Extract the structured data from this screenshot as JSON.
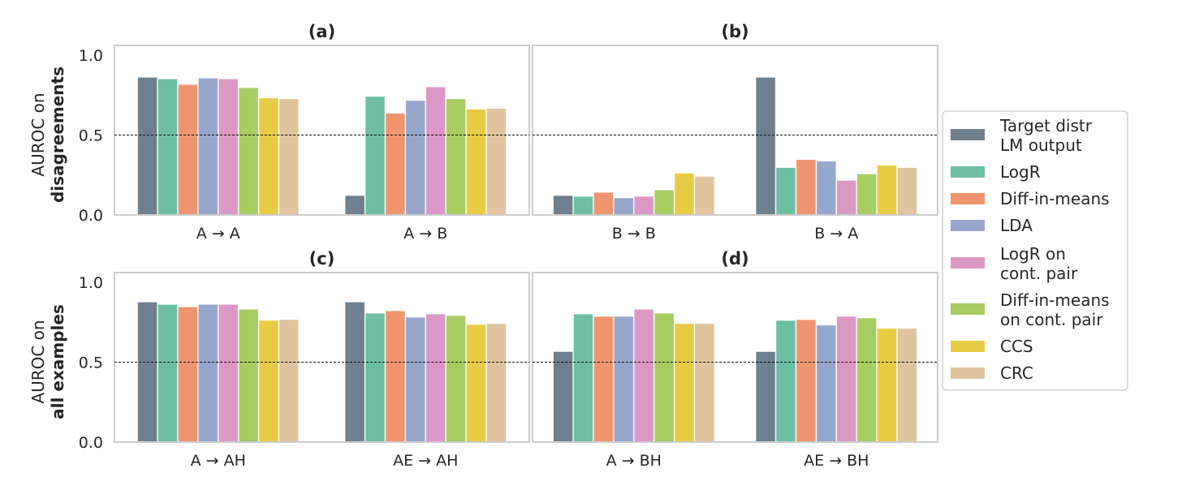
{
  "chart_data": {
    "type": "bar",
    "ylabels": [
      {
        "line1": "AUROC on",
        "line2": "disagreements"
      },
      {
        "line1": "AUROC on",
        "line2": "all examples"
      }
    ],
    "yticks": [
      "0.0",
      "0.5",
      "1.0"
    ],
    "ylim": [
      0,
      1
    ],
    "reference_line": 0.5,
    "grid": false,
    "legend_position": "right",
    "series": [
      {
        "name": "Target distr\nLM output",
        "color": "#6f7f8e"
      },
      {
        "name": "LogR",
        "color": "#6dbfa4"
      },
      {
        "name": "Diff-in-means",
        "color": "#ee9570"
      },
      {
        "name": "LDA",
        "color": "#97a6cb"
      },
      {
        "name": "LogR on\ncont. pair",
        "color": "#dc98c4"
      },
      {
        "name": "Diff-in-means\non cont. pair",
        "color": "#a6cc62"
      },
      {
        "name": "CCS",
        "color": "#e8cb45"
      },
      {
        "name": "CRC",
        "color": "#dfc49f"
      }
    ],
    "panels": [
      {
        "title": "(a)",
        "row": 0,
        "groups": [
          {
            "label": "A → A",
            "values": [
              0.86,
              0.85,
              0.815,
              0.855,
              0.85,
              0.795,
              0.73,
              0.725
            ]
          },
          {
            "label": "A → B",
            "values": [
              0.12,
              0.74,
              0.635,
              0.715,
              0.8,
              0.725,
              0.66,
              0.665
            ]
          }
        ]
      },
      {
        "title": "(b)",
        "row": 0,
        "groups": [
          {
            "label": "B → B",
            "values": [
              0.12,
              0.115,
              0.14,
              0.105,
              0.115,
              0.155,
              0.26,
              0.24
            ]
          },
          {
            "label": "B → A",
            "values": [
              0.86,
              0.295,
              0.345,
              0.335,
              0.215,
              0.255,
              0.31,
              0.295
            ]
          }
        ]
      },
      {
        "title": "(c)",
        "row": 1,
        "groups": [
          {
            "label": "A → AH",
            "values": [
              0.875,
              0.86,
              0.845,
              0.86,
              0.86,
              0.83,
              0.76,
              0.765
            ]
          },
          {
            "label": "AE → AH",
            "values": [
              0.875,
              0.805,
              0.82,
              0.78,
              0.8,
              0.79,
              0.735,
              0.74
            ]
          }
        ]
      },
      {
        "title": "(d)",
        "row": 1,
        "groups": [
          {
            "label": "A → BH",
            "values": [
              0.565,
              0.8,
              0.785,
              0.785,
              0.83,
              0.805,
              0.74,
              0.74
            ]
          },
          {
            "label": "AE → BH",
            "values": [
              0.565,
              0.76,
              0.765,
              0.73,
              0.785,
              0.775,
              0.71,
              0.71
            ]
          }
        ]
      }
    ]
  }
}
